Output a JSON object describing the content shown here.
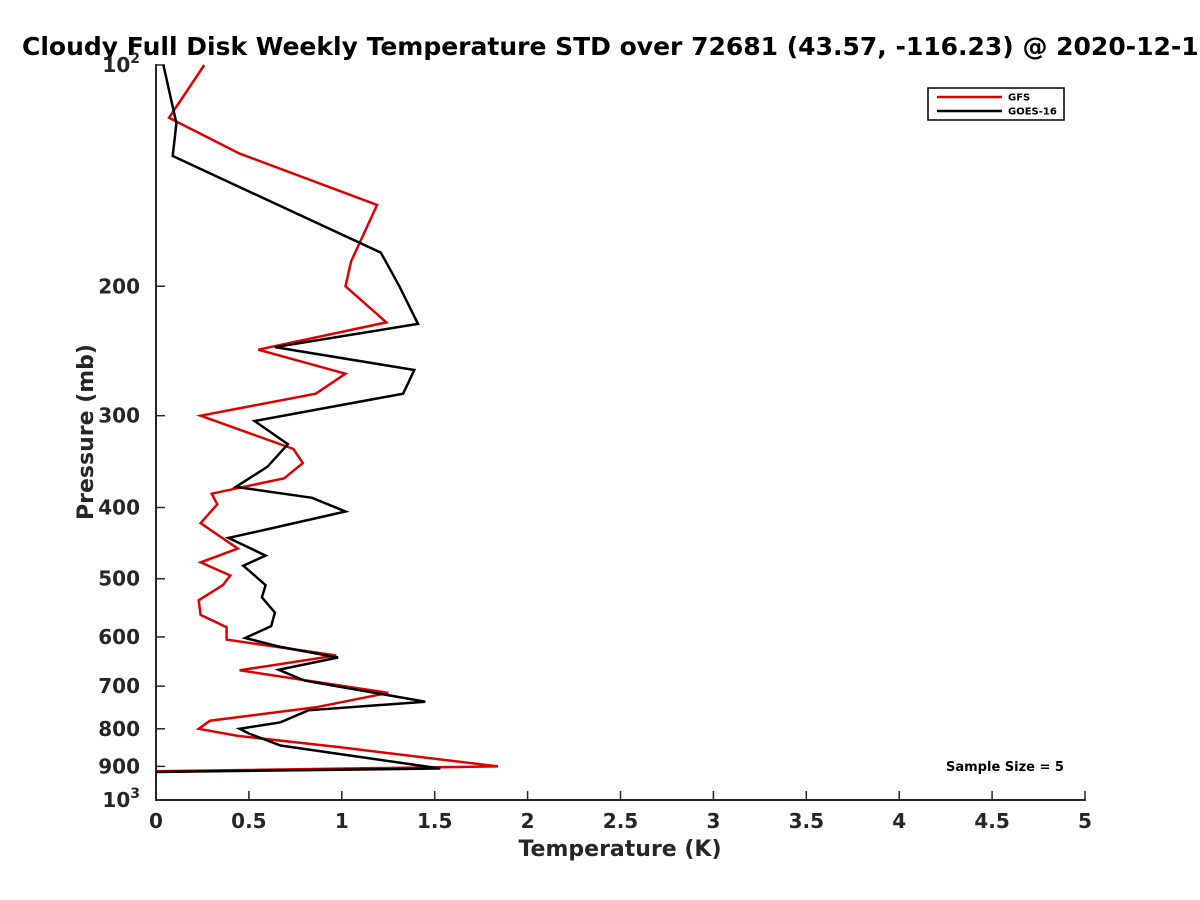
{
  "chart_data": {
    "type": "line",
    "title": "Cloudy Full Disk Weekly Temperature STD over 72681 (43.57, -116.23) @ 2020-12-1",
    "xlabel": "Temperature (K)",
    "ylabel": "Pressure (mb)",
    "xlim": [
      0,
      5
    ],
    "ylim": [
      100,
      1000
    ],
    "yscale": "log",
    "y_reversed": true,
    "x_ticks": [
      "0",
      "0.5",
      "1",
      "1.5",
      "2",
      "2.5",
      "3",
      "3.5",
      "4",
      "4.5",
      "5"
    ],
    "y_ticks": [
      {
        "value": 100,
        "base": "10",
        "exp": "2"
      },
      {
        "value": 200,
        "label": "200"
      },
      {
        "value": 300,
        "label": "300"
      },
      {
        "value": 400,
        "label": "400"
      },
      {
        "value": 500,
        "label": "500"
      },
      {
        "value": 600,
        "label": "600"
      },
      {
        "value": 700,
        "label": "700"
      },
      {
        "value": 800,
        "label": "800"
      },
      {
        "value": 900,
        "label": "900"
      },
      {
        "value": 1000,
        "base": "10",
        "exp": "3"
      }
    ],
    "grid": false,
    "legend_position": "top-right",
    "annotation": "Sample Size = 5",
    "series": [
      {
        "name": "GFS",
        "color": "#dd0000",
        "x": [
          0.26,
          0.07,
          0.45,
          1.19,
          1.05,
          1.02,
          1.24,
          0.55,
          1.02,
          0.86,
          0.24,
          0.74,
          0.79,
          0.69,
          0.3,
          0.33,
          0.24,
          0.44,
          0.24,
          0.4,
          0.36,
          0.23,
          0.24,
          0.38,
          0.38,
          0.97,
          0.45,
          1.25,
          0.86,
          0.29,
          0.23,
          0.44,
          0.98,
          1.84,
          0.0
        ],
        "y": [
          100,
          118,
          132,
          155,
          185,
          200,
          224,
          244,
          263,
          280,
          300,
          333,
          348,
          365,
          383,
          396,
          420,
          455,
          475,
          495,
          510,
          535,
          560,
          582,
          605,
          636,
          666,
          715,
          748,
          780,
          800,
          818,
          847,
          900,
          914
        ]
      },
      {
        "name": "GOES-16",
        "color": "#000000",
        "x": [
          0.04,
          0.11,
          0.09,
          1.21,
          1.31,
          1.41,
          0.64,
          1.39,
          1.33,
          0.53,
          0.71,
          0.6,
          0.43,
          0.84,
          1.02,
          0.62,
          0.39,
          0.59,
          0.47,
          0.59,
          0.57,
          0.64,
          0.62,
          0.48,
          0.67,
          0.98,
          0.66,
          0.8,
          0.97,
          1.45,
          0.82,
          0.67,
          0.45,
          0.5,
          0.67,
          1.53,
          0.0
        ],
        "y": [
          100,
          120,
          133,
          180,
          200,
          225,
          242,
          260,
          280,
          305,
          328,
          352,
          375,
          388,
          405,
          427,
          440,
          465,
          480,
          510,
          530,
          556,
          580,
          602,
          619,
          640,
          665,
          688,
          700,
          735,
          755,
          784,
          800,
          812,
          843,
          906,
          916
        ]
      }
    ]
  }
}
